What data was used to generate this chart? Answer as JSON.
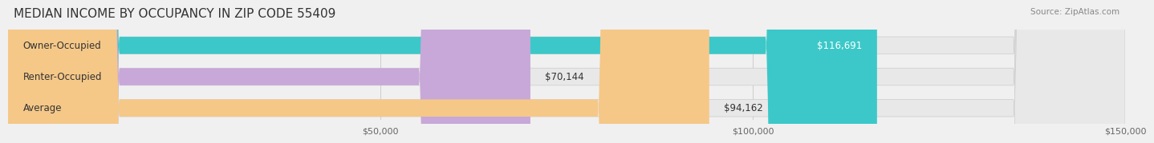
{
  "title": "MEDIAN INCOME BY OCCUPANCY IN ZIP CODE 55409",
  "source": "Source: ZipAtlas.com",
  "categories": [
    "Owner-Occupied",
    "Renter-Occupied",
    "Average"
  ],
  "values": [
    116691,
    70144,
    94162
  ],
  "bar_colors": [
    "#3cc8c8",
    "#c8a8d8",
    "#f5c888"
  ],
  "bar_labels": [
    "$116,691",
    "$70,144",
    "$94,162"
  ],
  "xlim": [
    0,
    150000
  ],
  "xticks": [
    0,
    50000,
    100000,
    150000
  ],
  "xtick_labels": [
    "",
    "$50,000",
    "$100,000",
    "$150,000"
  ],
  "background_color": "#f0f0f0",
  "bar_background_color": "#e8e8e8",
  "title_fontsize": 11,
  "label_fontsize": 8.5,
  "value_fontsize": 8.5,
  "bar_height": 0.55
}
